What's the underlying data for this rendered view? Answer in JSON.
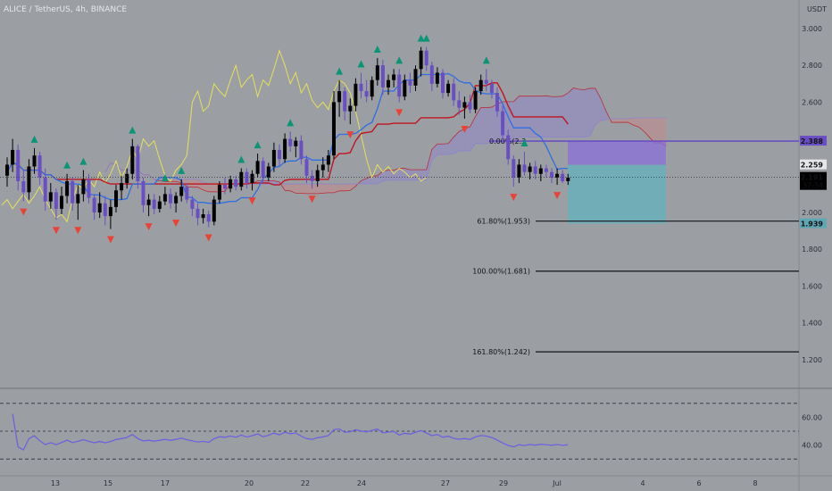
{
  "header": {
    "title": "ALICE / TetherUS, 4h, BINANCE",
    "currency": "USDT"
  },
  "colors": {
    "background": "#9b9ea3",
    "bull": "#000000",
    "bear": "#6a4fc4",
    "tenkan": "#2f6fe3",
    "kijun": "#c1141f",
    "lagging": "#e6e05a",
    "cloud_bear_fill": "#c48b8b",
    "cloud_bull_fill": "#8f86c8",
    "buy": "#0a9577",
    "sell": "#e84336",
    "rsi": "#6f62e0"
  },
  "chart_data": {
    "type": "candlestick",
    "price_axis": {
      "ylim": [
        1.05,
        3.1
      ],
      "ticks": [
        "3.000",
        "2.800",
        "2.600",
        "2.400",
        "2.200",
        "2.000",
        "1.800",
        "1.600",
        "1.400",
        "1.200"
      ]
    },
    "time_axis": {
      "ticks": [
        "13",
        "15",
        "17",
        "20",
        "22",
        "24",
        "27",
        "29",
        "Jul",
        "4",
        "6",
        "8"
      ]
    },
    "ohlc": [
      [
        2.2,
        2.3,
        2.14,
        2.26
      ],
      [
        2.26,
        2.4,
        2.22,
        2.34
      ],
      [
        2.34,
        2.37,
        2.12,
        2.17
      ],
      [
        2.17,
        2.23,
        2.06,
        2.11
      ],
      [
        2.11,
        2.29,
        2.07,
        2.25
      ],
      [
        2.25,
        2.35,
        2.21,
        2.31
      ],
      [
        2.31,
        2.33,
        2.15,
        2.19
      ],
      [
        2.19,
        2.24,
        2.01,
        2.06
      ],
      [
        2.06,
        2.16,
        2.02,
        2.11
      ],
      [
        2.11,
        2.13,
        1.96,
        2.02
      ],
      [
        2.02,
        2.14,
        1.99,
        2.09
      ],
      [
        2.09,
        2.21,
        2.05,
        2.17
      ],
      [
        2.17,
        2.19,
        2.01,
        2.05
      ],
      [
        2.05,
        2.15,
        1.96,
        2.1
      ],
      [
        2.1,
        2.23,
        2.06,
        2.18
      ],
      [
        2.18,
        2.21,
        2.05,
        2.08
      ],
      [
        2.08,
        2.1,
        1.96,
        2.0
      ],
      [
        2.0,
        2.11,
        1.97,
        2.05
      ],
      [
        2.05,
        2.09,
        1.93,
        1.98
      ],
      [
        1.98,
        2.07,
        1.91,
        2.03
      ],
      [
        2.03,
        2.15,
        2.0,
        2.12
      ],
      [
        2.12,
        2.2,
        2.07,
        2.16
      ],
      [
        2.16,
        2.24,
        2.13,
        2.21
      ],
      [
        2.21,
        2.4,
        2.18,
        2.36
      ],
      [
        2.36,
        2.37,
        2.13,
        2.17
      ],
      [
        2.17,
        2.19,
        2.0,
        2.04
      ],
      [
        2.04,
        2.1,
        1.98,
        2.07
      ],
      [
        2.07,
        2.1,
        1.99,
        2.02
      ],
      [
        2.02,
        2.09,
        2.0,
        2.06
      ],
      [
        2.06,
        2.14,
        2.04,
        2.1
      ],
      [
        2.1,
        2.13,
        2.02,
        2.05
      ],
      [
        2.05,
        2.11,
        2.0,
        2.09
      ],
      [
        2.09,
        2.18,
        2.06,
        2.14
      ],
      [
        2.14,
        2.16,
        2.05,
        2.07
      ],
      [
        2.07,
        2.09,
        1.98,
        2.02
      ],
      [
        2.02,
        2.05,
        1.93,
        1.97
      ],
      [
        1.97,
        2.02,
        1.94,
        1.99
      ],
      [
        1.99,
        2.01,
        1.92,
        1.95
      ],
      [
        1.95,
        2.09,
        1.93,
        2.07
      ],
      [
        2.07,
        2.17,
        2.05,
        2.15
      ],
      [
        2.15,
        2.19,
        2.1,
        2.13
      ],
      [
        2.13,
        2.2,
        2.11,
        2.18
      ],
      [
        2.18,
        2.2,
        2.12,
        2.14
      ],
      [
        2.14,
        2.24,
        2.12,
        2.22
      ],
      [
        2.22,
        2.24,
        2.13,
        2.16
      ],
      [
        2.16,
        2.23,
        2.12,
        2.21
      ],
      [
        2.21,
        2.32,
        2.19,
        2.28
      ],
      [
        2.28,
        2.3,
        2.16,
        2.19
      ],
      [
        2.19,
        2.27,
        2.17,
        2.25
      ],
      [
        2.25,
        2.38,
        2.22,
        2.34
      ],
      [
        2.34,
        2.37,
        2.25,
        2.29
      ],
      [
        2.29,
        2.43,
        2.27,
        2.4
      ],
      [
        2.4,
        2.44,
        2.33,
        2.36
      ],
      [
        2.36,
        2.41,
        2.3,
        2.39
      ],
      [
        2.39,
        2.42,
        2.26,
        2.29
      ],
      [
        2.29,
        2.31,
        2.16,
        2.2
      ],
      [
        2.2,
        2.23,
        2.13,
        2.17
      ],
      [
        2.17,
        2.26,
        2.14,
        2.23
      ],
      [
        2.23,
        2.3,
        2.19,
        2.26
      ],
      [
        2.26,
        2.34,
        2.22,
        2.31
      ],
      [
        2.31,
        2.66,
        2.29,
        2.6
      ],
      [
        2.6,
        2.72,
        2.52,
        2.66
      ],
      [
        2.66,
        2.68,
        2.5,
        2.55
      ],
      [
        2.55,
        2.62,
        2.48,
        2.58
      ],
      [
        2.58,
        2.73,
        2.55,
        2.7
      ],
      [
        2.7,
        2.76,
        2.62,
        2.66
      ],
      [
        2.66,
        2.72,
        2.6,
        2.63
      ],
      [
        2.63,
        2.74,
        2.61,
        2.72
      ],
      [
        2.72,
        2.84,
        2.69,
        2.8
      ],
      [
        2.8,
        2.83,
        2.64,
        2.68
      ],
      [
        2.68,
        2.75,
        2.64,
        2.72
      ],
      [
        2.72,
        2.78,
        2.68,
        2.75
      ],
      [
        2.75,
        2.78,
        2.6,
        2.63
      ],
      [
        2.63,
        2.75,
        2.61,
        2.72
      ],
      [
        2.72,
        2.76,
        2.65,
        2.69
      ],
      [
        2.69,
        2.8,
        2.66,
        2.78
      ],
      [
        2.78,
        2.9,
        2.74,
        2.88
      ],
      [
        2.88,
        2.9,
        2.77,
        2.8
      ],
      [
        2.8,
        2.82,
        2.66,
        2.7
      ],
      [
        2.7,
        2.79,
        2.68,
        2.76
      ],
      [
        2.76,
        2.78,
        2.62,
        2.65
      ],
      [
        2.65,
        2.72,
        2.63,
        2.7
      ],
      [
        2.7,
        2.73,
        2.58,
        2.61
      ],
      [
        2.61,
        2.66,
        2.53,
        2.57
      ],
      [
        2.57,
        2.63,
        2.51,
        2.6
      ],
      [
        2.6,
        2.64,
        2.54,
        2.56
      ],
      [
        2.56,
        2.68,
        2.54,
        2.66
      ],
      [
        2.66,
        2.75,
        2.64,
        2.72
      ],
      [
        2.72,
        2.78,
        2.66,
        2.7
      ],
      [
        2.7,
        2.72,
        2.62,
        2.65
      ],
      [
        2.65,
        2.68,
        2.52,
        2.55
      ],
      [
        2.55,
        2.58,
        2.4,
        2.42
      ],
      [
        2.42,
        2.45,
        2.26,
        2.29
      ],
      [
        2.29,
        2.31,
        2.14,
        2.19
      ],
      [
        2.19,
        2.29,
        2.16,
        2.26
      ],
      [
        2.26,
        2.33,
        2.2,
        2.22
      ],
      [
        2.22,
        2.27,
        2.18,
        2.25
      ],
      [
        2.25,
        2.28,
        2.18,
        2.21
      ],
      [
        2.21,
        2.26,
        2.17,
        2.24
      ],
      [
        2.24,
        2.26,
        2.19,
        2.22
      ],
      [
        2.22,
        2.24,
        2.16,
        2.19
      ],
      [
        2.19,
        2.24,
        2.15,
        2.21
      ],
      [
        2.21,
        2.23,
        2.16,
        2.17
      ],
      [
        2.17,
        2.21,
        2.15,
        2.19
      ]
    ],
    "horizontal_levels": [
      {
        "label": "0.00%(2.3",
        "value": 2.388
      },
      {
        "label": "61.80%(1.953)",
        "value": 1.953
      },
      {
        "label": "100.00%(1.681)",
        "value": 1.681
      },
      {
        "label": "161.80%(1.242)",
        "value": 1.242
      }
    ],
    "price_labels": [
      {
        "text": "2.388",
        "value": 2.388,
        "bg": "#6a4fc4",
        "fg": "#ffffff"
      },
      {
        "text": "2.259",
        "value": 2.259,
        "bg": "#e6e7e9",
        "fg": "#141418"
      },
      {
        "text": "2.191",
        "value": 2.191,
        "bg": "#000000",
        "fg": "#ffffff",
        "sub": "37:34"
      },
      {
        "text": "1.939",
        "value": 1.939,
        "bg": "#5fa7b3",
        "fg": "#ffffff"
      }
    ],
    "position_box": {
      "entry": 2.259,
      "stop": 2.388,
      "target": 1.939
    },
    "rsi": {
      "ticks": [
        "60.00",
        "40.00"
      ],
      "levels": [
        70,
        50,
        30
      ],
      "range": [
        25,
        75
      ]
    }
  }
}
